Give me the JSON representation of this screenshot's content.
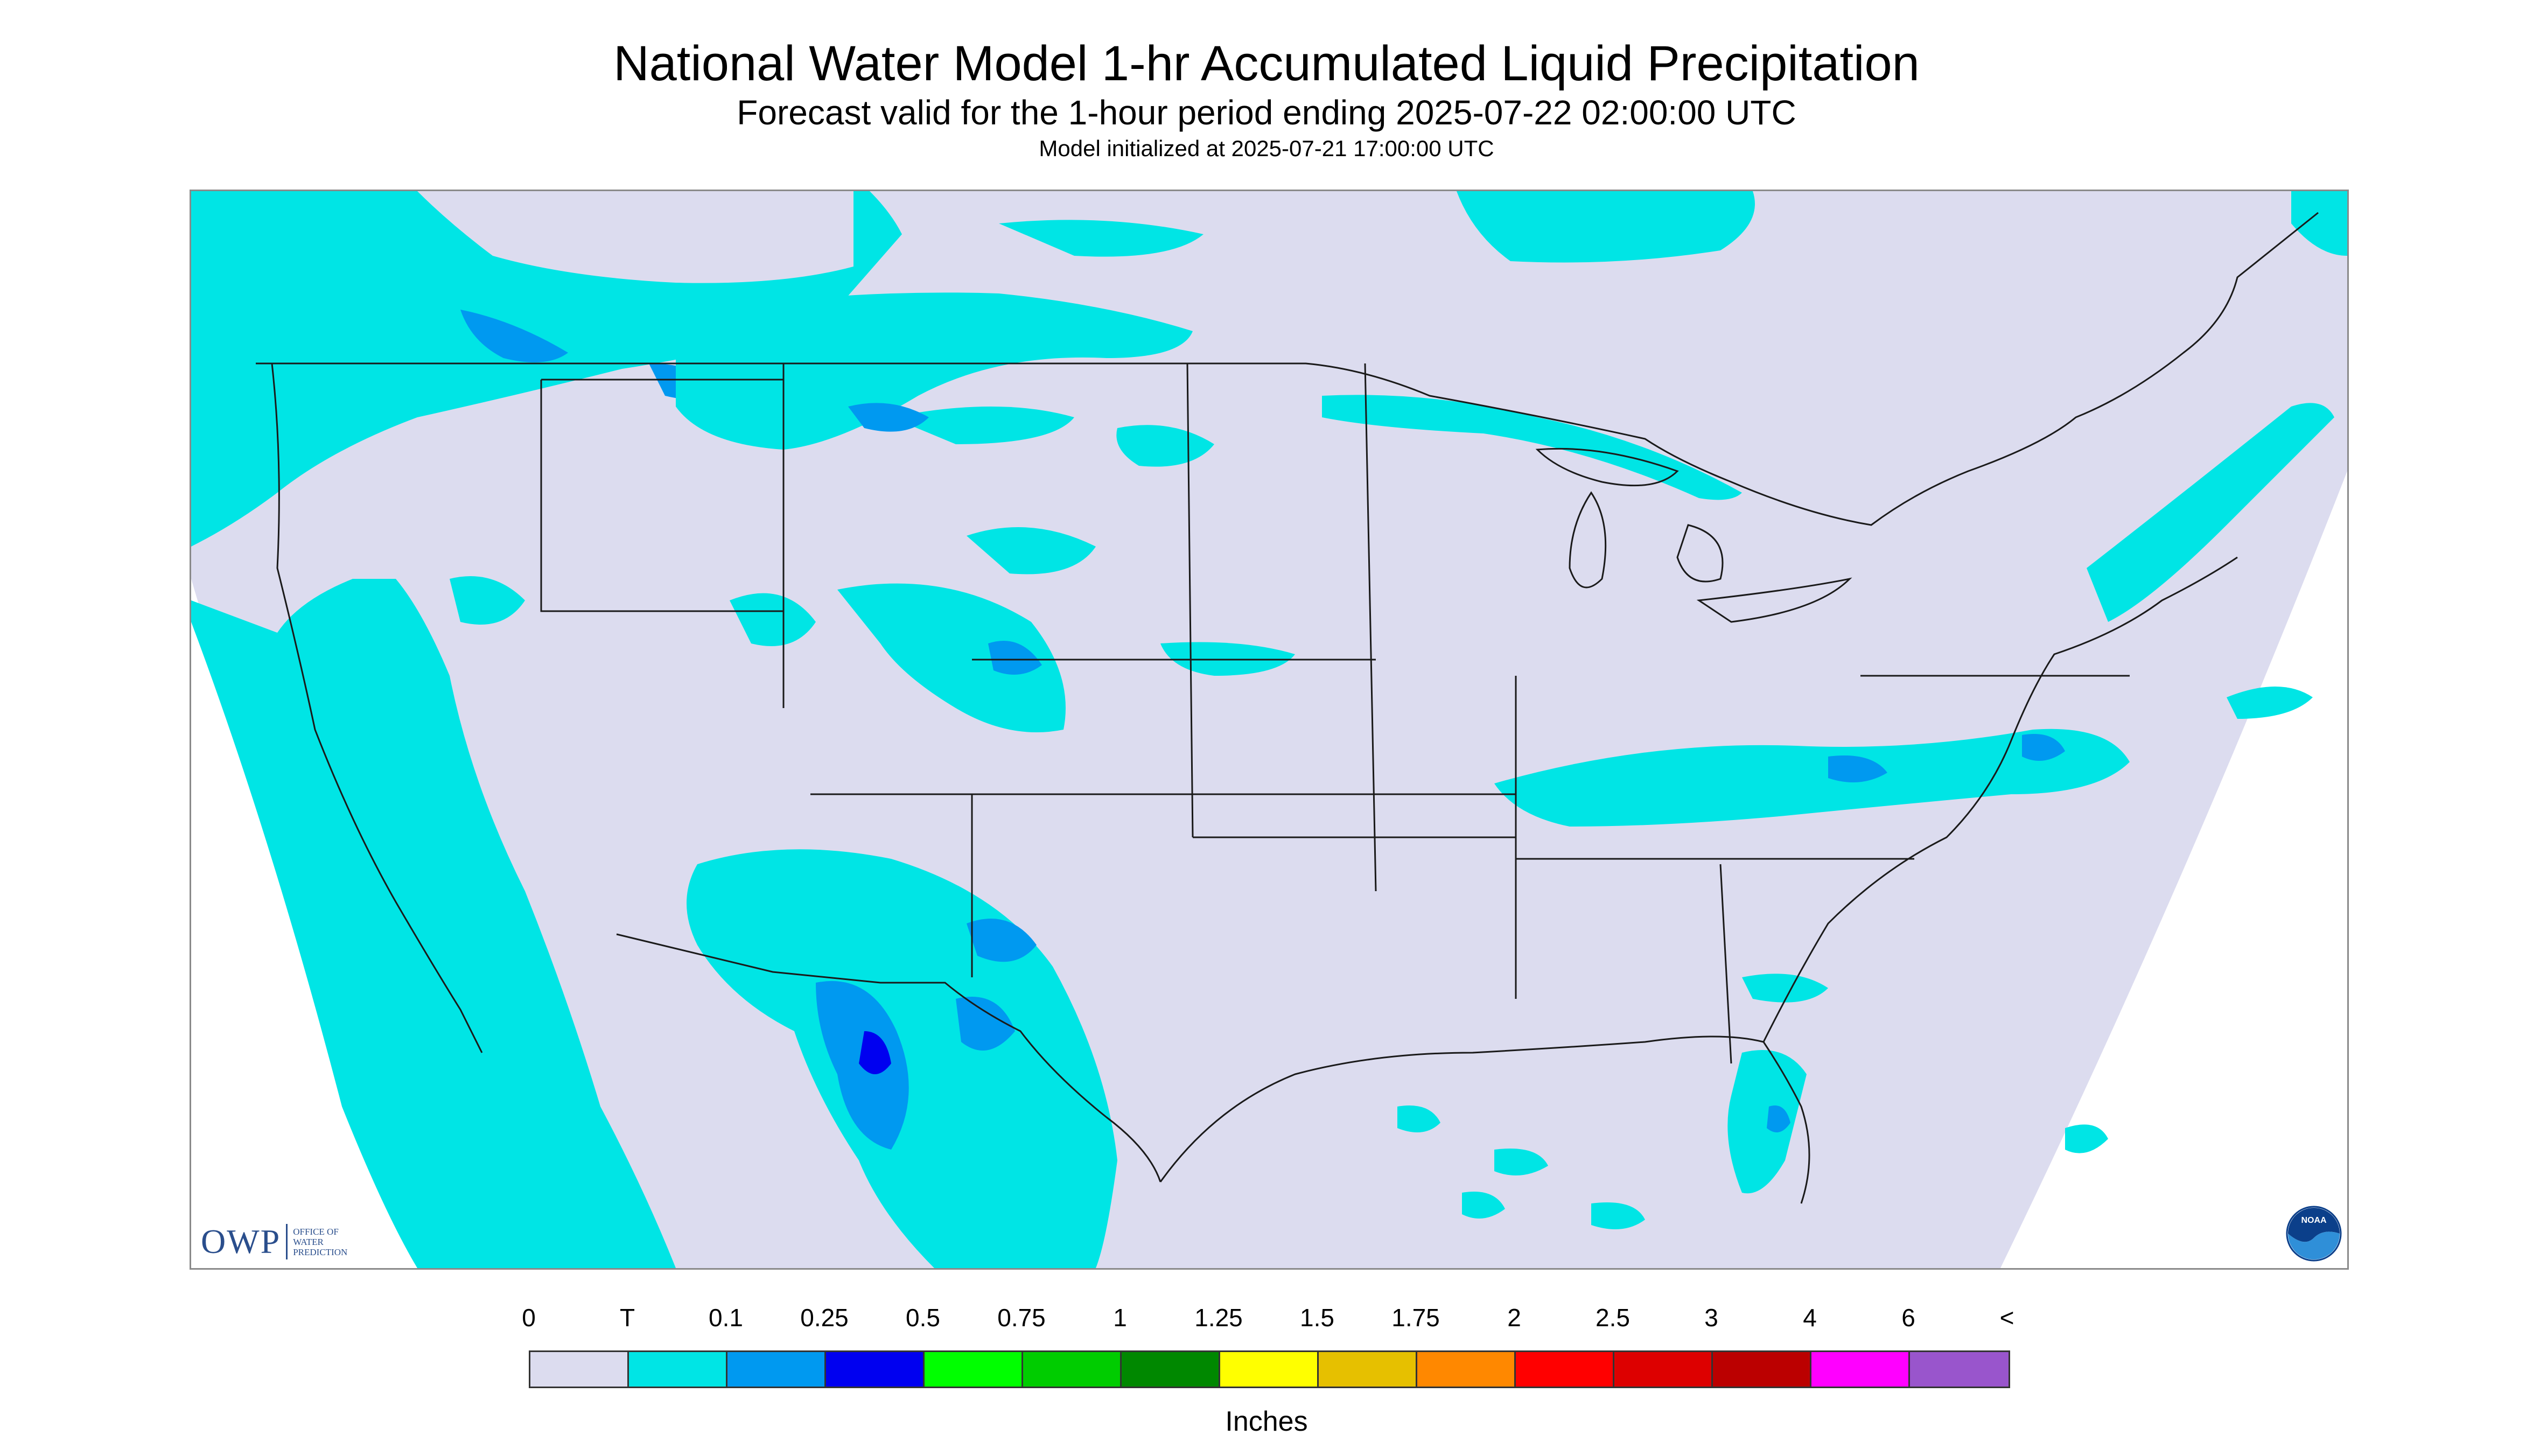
{
  "title": "National Water Model 1-hr Accumulated Liquid Precipitation",
  "subtitle": "Forecast valid for the 1-hour period ending 2025-07-22 02:00:00 UTC",
  "model_init": "Model initialized at 2025-07-21 17:00:00 UTC",
  "map": {
    "background_color": "#dcdcef",
    "outside_domain_color": "#ffffff",
    "boundary_color": "#1a1a1a",
    "owp_logo": {
      "letters": "OWP",
      "subtitle_lines": [
        "OFFICE OF",
        "WATER",
        "PREDICTION"
      ]
    },
    "noaa_logo": {
      "icon": "noaa-logo",
      "text": "NOAA"
    }
  },
  "legend": {
    "labels": [
      "0",
      "T",
      "0.1",
      "0.25",
      "0.5",
      "0.75",
      "1",
      "1.25",
      "1.5",
      "1.75",
      "2",
      "2.5",
      "3",
      "4",
      "6",
      "<"
    ],
    "colors": [
      "#dcdcef",
      "#00e5e5",
      "#0099f0",
      "#0000f0",
      "#00ff00",
      "#00cc00",
      "#008800",
      "#ffff00",
      "#e6c000",
      "#ff8800",
      "#ff0000",
      "#dd0000",
      "#bb0000",
      "#ff00ff",
      "#9955cc"
    ],
    "units": "Inches"
  }
}
